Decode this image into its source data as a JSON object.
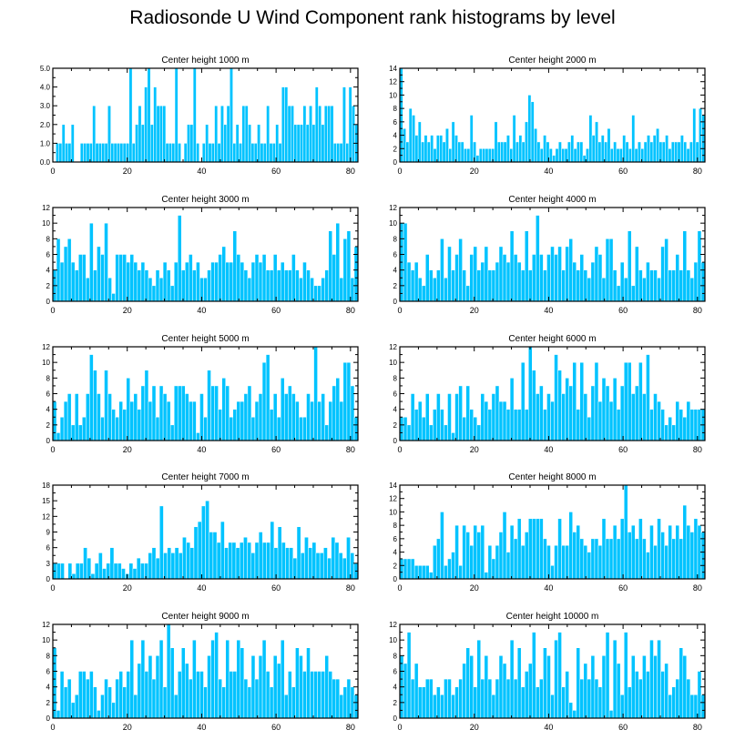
{
  "title": "Radiosonde U Wind Component rank histograms by level",
  "colors": {
    "bar": "#00c3ff",
    "bar_edge": "#ffffff",
    "frame": "#000000"
  },
  "chart_data": [
    {
      "type": "bar",
      "title": "Center height 1000 m",
      "xlim": [
        0,
        82
      ],
      "ylim": [
        0,
        5
      ],
      "x_ticks": [
        0,
        20,
        40,
        60,
        80
      ],
      "y_ticks": [
        0,
        1,
        2,
        3,
        4,
        5
      ],
      "y_tick_labels": [
        "0.0",
        "1.0",
        "2.0",
        "3.0",
        "4.0",
        "5.0"
      ],
      "values": [
        0,
        1,
        1,
        2,
        1,
        1,
        2,
        0,
        0,
        1,
        1,
        1,
        1,
        3,
        1,
        1,
        1,
        1,
        3,
        1,
        1,
        1,
        1,
        1,
        1,
        5,
        1,
        2,
        3,
        2,
        4,
        5,
        2,
        4,
        3,
        3,
        3,
        1,
        1,
        1,
        5,
        1,
        0,
        1,
        2,
        2,
        5,
        1,
        0,
        1,
        2,
        1,
        1,
        3,
        1,
        3,
        2,
        3,
        5,
        1,
        2,
        1,
        3,
        3,
        2,
        1,
        1,
        2,
        1,
        1,
        3,
        1,
        1,
        2,
        1,
        4,
        4,
        3,
        3,
        2,
        2,
        2,
        3,
        2,
        3,
        2,
        4,
        3,
        2,
        3,
        3,
        3,
        1,
        1,
        1,
        4,
        1,
        4,
        3,
        2
      ]
    },
    {
      "type": "bar",
      "title": "Center height 2000 m",
      "xlim": [
        0,
        82
      ],
      "ylim": [
        0,
        14
      ],
      "x_ticks": [
        0,
        20,
        40,
        60,
        80
      ],
      "y_ticks": [
        0,
        2,
        4,
        6,
        8,
        10,
        12,
        14
      ],
      "y_tick_labels": [
        "0",
        "2",
        "4",
        "6",
        "8",
        "10",
        "12",
        "14"
      ],
      "values": [
        14,
        5,
        3,
        8,
        7,
        4,
        6,
        3,
        4,
        3,
        4,
        2,
        4,
        4,
        3,
        5,
        2,
        6,
        4,
        3,
        3,
        2,
        2,
        7,
        3,
        1,
        2,
        2,
        2,
        2,
        2,
        6,
        3,
        3,
        3,
        4,
        2,
        7,
        3,
        4,
        3,
        6,
        10,
        9,
        5,
        3,
        2,
        4,
        3,
        2,
        1,
        2,
        3,
        2,
        2,
        3,
        4,
        2,
        3,
        3,
        1,
        2,
        7,
        4,
        6,
        3,
        4,
        3,
        5,
        2,
        3,
        2,
        2,
        4,
        3,
        2,
        7,
        2,
        3,
        2,
        3,
        4,
        3,
        4,
        5,
        3,
        3,
        4,
        2,
        3,
        3,
        3,
        4,
        3,
        2,
        3,
        8,
        3,
        8,
        7
      ]
    },
    {
      "type": "bar",
      "title": "Center height 3000 m",
      "xlim": [
        0,
        82
      ],
      "ylim": [
        0,
        12
      ],
      "x_ticks": [
        0,
        20,
        40,
        60,
        80
      ],
      "y_ticks": [
        0,
        2,
        4,
        6,
        8,
        10,
        12
      ],
      "y_tick_labels": [
        "0",
        "2",
        "4",
        "6",
        "8",
        "10",
        "12"
      ],
      "values": [
        4,
        8,
        5,
        7,
        8,
        5,
        4,
        6,
        6,
        3,
        10,
        4,
        7,
        6,
        10,
        3,
        1,
        6,
        6,
        6,
        5,
        6,
        5,
        4,
        5,
        4,
        3,
        2,
        4,
        3,
        5,
        4,
        2,
        5,
        11,
        4,
        5,
        6,
        4,
        5,
        3,
        3,
        4,
        5,
        5,
        6,
        7,
        5,
        5,
        9,
        6,
        5,
        4,
        3,
        5,
        6,
        5,
        6,
        4,
        4,
        6,
        4,
        5,
        4,
        4,
        6,
        4,
        3,
        5,
        4,
        3,
        2,
        2,
        3,
        4,
        9,
        6,
        10,
        3,
        8,
        9,
        3,
        7
      ]
    },
    {
      "type": "bar",
      "title": "Center height 4000 m",
      "xlim": [
        0,
        82
      ],
      "ylim": [
        0,
        12
      ],
      "x_ticks": [
        0,
        20,
        40,
        60,
        80
      ],
      "y_ticks": [
        0,
        2,
        4,
        6,
        8,
        10,
        12
      ],
      "y_tick_labels": [
        "0",
        "2",
        "4",
        "6",
        "8",
        "10",
        "12"
      ],
      "values": [
        10,
        10,
        5,
        4,
        5,
        3,
        2,
        6,
        4,
        3,
        4,
        8,
        3,
        7,
        4,
        6,
        8,
        4,
        2,
        6,
        7,
        4,
        5,
        7,
        4,
        4,
        5,
        7,
        6,
        5,
        9,
        6,
        5,
        4,
        9,
        4,
        6,
        11,
        6,
        4,
        6,
        7,
        6,
        7,
        4,
        7,
        8,
        5,
        4,
        6,
        4,
        3,
        5,
        7,
        6,
        3,
        8,
        8,
        4,
        2,
        5,
        3,
        9,
        2,
        7,
        4,
        3,
        5,
        4,
        4,
        3,
        7,
        8,
        4,
        4,
        6,
        4,
        9,
        4,
        3,
        5,
        9,
        5
      ]
    },
    {
      "type": "bar",
      "title": "Center height 5000 m",
      "xlim": [
        0,
        82
      ],
      "ylim": [
        0,
        12
      ],
      "x_ticks": [
        0,
        20,
        40,
        60,
        80
      ],
      "y_ticks": [
        0,
        2,
        4,
        6,
        8,
        10,
        12
      ],
      "y_tick_labels": [
        "0",
        "2",
        "4",
        "6",
        "8",
        "10",
        "12"
      ],
      "values": [
        5,
        1,
        3,
        5,
        6,
        2,
        6,
        2,
        3,
        6,
        11,
        9,
        6,
        3,
        9,
        6,
        4,
        3,
        5,
        4,
        8,
        5,
        6,
        4,
        7,
        9,
        5,
        7,
        3,
        7,
        6,
        5,
        2,
        7,
        7,
        7,
        6,
        5,
        5,
        1,
        6,
        3,
        9,
        7,
        7,
        4,
        8,
        7,
        3,
        4,
        5,
        5,
        6,
        7,
        3,
        5,
        6,
        10,
        11,
        4,
        6,
        3,
        8,
        6,
        7,
        6,
        5,
        3,
        3,
        6,
        5,
        12,
        5,
        6,
        2,
        5,
        7,
        8,
        5,
        10,
        10,
        7,
        3
      ]
    },
    {
      "type": "bar",
      "title": "Center height 6000 m",
      "xlim": [
        0,
        82
      ],
      "ylim": [
        0,
        12
      ],
      "x_ticks": [
        0,
        20,
        40,
        60,
        80
      ],
      "y_ticks": [
        0,
        2,
        4,
        6,
        8,
        10,
        12
      ],
      "y_tick_labels": [
        "0",
        "2",
        "4",
        "6",
        "8",
        "10",
        "12"
      ],
      "values": [
        3,
        3,
        2,
        6,
        4,
        5,
        3,
        6,
        2,
        4,
        6,
        4,
        2,
        6,
        1,
        6,
        7,
        3,
        7,
        4,
        3,
        2,
        6,
        5,
        4,
        6,
        7,
        5,
        5,
        4,
        8,
        4,
        4,
        10,
        4,
        12,
        9,
        6,
        7,
        4,
        6,
        5,
        11,
        9,
        6,
        8,
        7,
        10,
        4,
        10,
        6,
        3,
        7,
        10,
        5,
        8,
        7,
        5,
        8,
        4,
        7,
        10,
        10,
        6,
        7,
        10,
        6,
        11,
        4,
        6,
        5,
        4,
        2,
        3,
        2,
        5,
        4,
        3,
        5,
        4,
        4,
        4,
        4
      ]
    },
    {
      "type": "bar",
      "title": "Center height 7000 m",
      "xlim": [
        0,
        82
      ],
      "ylim": [
        0,
        18
      ],
      "x_ticks": [
        0,
        20,
        40,
        60,
        80
      ],
      "y_ticks": [
        0,
        3,
        6,
        9,
        12,
        15,
        18
      ],
      "y_tick_labels": [
        "0",
        "3",
        "6",
        "9",
        "12",
        "15",
        "18"
      ],
      "values": [
        3,
        3,
        3,
        0,
        3,
        1,
        3,
        3,
        6,
        4,
        1,
        3,
        5,
        2,
        3,
        6,
        3,
        3,
        2,
        1,
        3,
        2,
        4,
        3,
        3,
        5,
        6,
        4,
        14,
        5,
        6,
        5,
        6,
        5,
        8,
        7,
        6,
        10,
        11,
        14,
        15,
        9,
        9,
        7,
        11,
        6,
        7,
        7,
        6,
        7,
        8,
        7,
        5,
        7,
        9,
        7,
        7,
        11,
        6,
        10,
        7,
        6,
        6,
        4,
        10,
        5,
        8,
        6,
        7,
        5,
        5,
        6,
        4,
        8,
        7,
        5,
        4,
        8,
        5,
        3
      ]
    },
    {
      "type": "bar",
      "title": "Center height 8000 m",
      "xlim": [
        0,
        82
      ],
      "ylim": [
        0,
        14
      ],
      "x_ticks": [
        0,
        20,
        40,
        60,
        80
      ],
      "y_ticks": [
        0,
        2,
        4,
        6,
        8,
        10,
        12,
        14
      ],
      "y_tick_labels": [
        "0",
        "2",
        "4",
        "6",
        "8",
        "10",
        "12",
        "14"
      ],
      "values": [
        3,
        3,
        3,
        3,
        2,
        2,
        2,
        2,
        1,
        5,
        6,
        10,
        2,
        3,
        4,
        8,
        2,
        8,
        7,
        5,
        8,
        7,
        8,
        1,
        5,
        3,
        5,
        7,
        10,
        4,
        8,
        6,
        9,
        5,
        7,
        9,
        9,
        9,
        9,
        6,
        5,
        2,
        5,
        9,
        5,
        5,
        10,
        7,
        8,
        6,
        5,
        4,
        6,
        6,
        5,
        9,
        6,
        6,
        8,
        6,
        9,
        14,
        7,
        8,
        6,
        9,
        6,
        4,
        8,
        5,
        9,
        7,
        5,
        8,
        6,
        8,
        6,
        11,
        8,
        7,
        9,
        8,
        7
      ]
    },
    {
      "type": "bar",
      "title": "Center height 9000 m",
      "xlim": [
        0,
        82
      ],
      "ylim": [
        0,
        12
      ],
      "x_ticks": [
        0,
        20,
        40,
        60,
        80
      ],
      "y_ticks": [
        0,
        2,
        4,
        6,
        8,
        10,
        12
      ],
      "y_tick_labels": [
        "0",
        "2",
        "4",
        "6",
        "8",
        "10",
        "12"
      ],
      "values": [
        9,
        1,
        6,
        4,
        5,
        2,
        3,
        6,
        6,
        5,
        6,
        4,
        1,
        3,
        5,
        4,
        2,
        5,
        6,
        4,
        6,
        10,
        3,
        7,
        10,
        6,
        8,
        5,
        8,
        10,
        4,
        12,
        9,
        3,
        6,
        9,
        7,
        5,
        10,
        6,
        6,
        4,
        8,
        10,
        11,
        5,
        4,
        10,
        6,
        6,
        10,
        9,
        5,
        4,
        8,
        5,
        8,
        10,
        6,
        4,
        8,
        7,
        10,
        3,
        6,
        4,
        9,
        8,
        6,
        9,
        6,
        6,
        6,
        6,
        8,
        6,
        5,
        5,
        3,
        4,
        5,
        4,
        3
      ]
    },
    {
      "type": "bar",
      "title": "Center height 10000 m",
      "xlim": [
        0,
        82
      ],
      "ylim": [
        0,
        12
      ],
      "x_ticks": [
        0,
        20,
        40,
        60,
        80
      ],
      "y_ticks": [
        0,
        2,
        4,
        6,
        8,
        10,
        12
      ],
      "y_tick_labels": [
        "0",
        "2",
        "4",
        "6",
        "8",
        "10",
        "12"
      ],
      "values": [
        8,
        7,
        11,
        5,
        7,
        4,
        4,
        5,
        5,
        3,
        4,
        3,
        5,
        5,
        3,
        4,
        5,
        7,
        9,
        8,
        4,
        10,
        5,
        8,
        5,
        3,
        5,
        8,
        7,
        5,
        10,
        5,
        9,
        4,
        6,
        7,
        11,
        4,
        5,
        9,
        8,
        3,
        10,
        11,
        4,
        6,
        2,
        1,
        9,
        5,
        7,
        5,
        8,
        5,
        4,
        8,
        11,
        1,
        10,
        7,
        3,
        11,
        4,
        8,
        6,
        5,
        8,
        6,
        10,
        8,
        10,
        6,
        7,
        3,
        4,
        5,
        9,
        8,
        5,
        3,
        3,
        6,
        3
      ]
    }
  ]
}
